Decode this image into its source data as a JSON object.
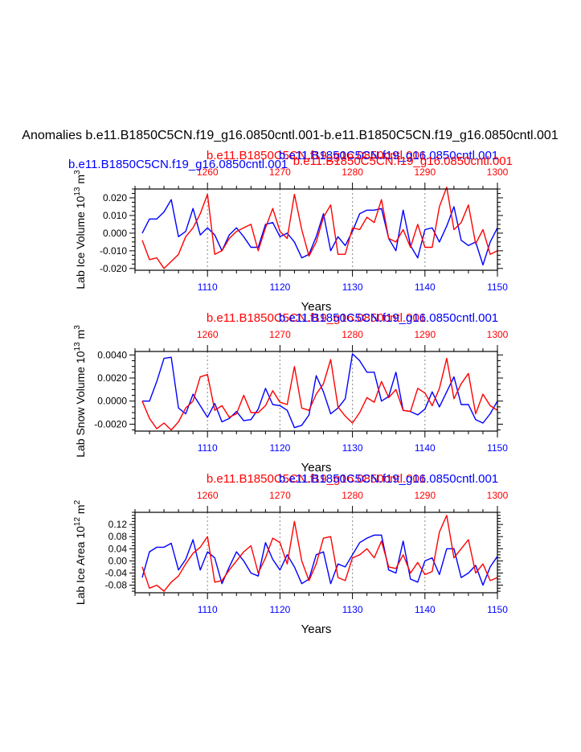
{
  "page_title": "Anomalies b.e11.B1850C5CN.f19_g16.0850cntl.001-b.e11.B1850C5CN.f19_g16.0850cntl.001",
  "colors": {
    "blue": "#0000ff",
    "red": "#ff0000",
    "axis": "#000000",
    "grid": "#999999"
  },
  "chart_data": [
    {
      "type": "line",
      "ylabel": "Lab Ice Volume",
      "yunit_base": "10",
      "yunit_exp": "13",
      "yunit_tail": "m",
      "yunit_tail_exp": "3",
      "xlabel": "Years",
      "red_label": "b.e11.B1850C5CN.f19_g16.0850cntl.001",
      "blue_label": "b.e11.B1850C5CN.f19_g16.0850cntl.001",
      "title_left_blue": "b.e11.B1850C5CN.f19_g16.0850cntl.001",
      "title_right_red": "b.e11.B1850C5CN.f19_g16.0850cntl.001",
      "ylim": [
        -0.021,
        0.025
      ],
      "yticks": [
        -0.02,
        -0.01,
        0.0,
        0.01,
        0.02
      ],
      "ytick_labels": [
        "-0.020",
        "-0.010",
        "0.000",
        "0.010",
        "0.020"
      ],
      "bottom_xlim": [
        1100,
        1150
      ],
      "bottom_xticks": [
        1110,
        1120,
        1130,
        1140,
        1150
      ],
      "top_xlim": [
        1250,
        1300
      ],
      "top_xticks": [
        1260,
        1270,
        1280,
        1290,
        1300
      ],
      "series": [
        {
          "name": "blue",
          "x_start": 1101,
          "values": [
            0.0,
            0.008,
            0.008,
            0.012,
            0.019,
            -0.002,
            0.001,
            0.014,
            -0.001,
            0.003,
            -0.001,
            -0.01,
            -0.001,
            0.003,
            -0.002,
            -0.008,
            -0.008,
            0.005,
            0.006,
            -0.002,
            0.0,
            -0.005,
            -0.014,
            -0.012,
            -0.002,
            0.011,
            -0.01,
            -0.002,
            -0.007,
            0.001,
            0.011,
            0.013,
            0.013,
            0.014,
            -0.003,
            -0.01,
            0.013,
            -0.007,
            -0.014,
            0.002,
            0.003,
            -0.005,
            0.004,
            0.015,
            -0.004,
            -0.007,
            -0.005,
            -0.018,
            -0.005,
            0.003
          ]
        },
        {
          "name": "red",
          "x_start": 1101,
          "values": [
            -0.004,
            -0.015,
            -0.014,
            -0.02,
            -0.016,
            -0.012,
            -0.002,
            0.003,
            0.011,
            0.022,
            -0.012,
            -0.01,
            -0.003,
            0.001,
            0.003,
            0.005,
            -0.01,
            0.003,
            0.014,
            0.001,
            -0.003,
            0.022,
            0.002,
            -0.013,
            -0.005,
            0.009,
            0.016,
            -0.012,
            -0.012,
            0.003,
            0.002,
            0.009,
            0.006,
            0.019,
            -0.003,
            -0.005,
            0.002,
            -0.008,
            0.005,
            -0.008,
            -0.008,
            0.015,
            0.026,
            0.002,
            0.006,
            0.016,
            -0.006,
            0.002,
            -0.012,
            -0.01
          ]
        }
      ]
    },
    {
      "type": "line",
      "ylabel": "Lab Snow Volume",
      "yunit_base": "10",
      "yunit_exp": "13",
      "yunit_tail": "m",
      "yunit_tail_exp": "3",
      "xlabel": "Years",
      "red_label": "b.e11.B1850C5CN.f19_g16.0850cntl.001",
      "blue_label": "b.e11.B1850C5CN.f19_g16.0850cntl.001",
      "ylim": [
        -0.0026,
        0.0043
      ],
      "yticks": [
        -0.002,
        0.0,
        0.002,
        0.004
      ],
      "ytick_labels": [
        "-0.0020",
        "0.0000",
        "0.0020",
        "0.0040"
      ],
      "bottom_xlim": [
        1100,
        1150
      ],
      "bottom_xticks": [
        1110,
        1120,
        1130,
        1140,
        1150
      ],
      "top_xlim": [
        1250,
        1300
      ],
      "top_xticks": [
        1260,
        1270,
        1280,
        1290,
        1300
      ],
      "series": [
        {
          "name": "blue",
          "x_start": 1101,
          "values": [
            0.0,
            0.0,
            0.0017,
            0.0037,
            0.0038,
            -0.0006,
            -0.0011,
            0.0006,
            -0.0004,
            -0.0014,
            -0.0002,
            -0.0018,
            -0.0015,
            -0.0009,
            -0.0017,
            -0.0016,
            -0.0007,
            0.0011,
            -0.0003,
            -0.0004,
            -0.0008,
            -0.0023,
            -0.0021,
            -0.0012,
            0.0022,
            0.0008,
            -0.0011,
            -0.0006,
            0.0002,
            0.0041,
            0.0035,
            0.0025,
            0.0025,
            0.0,
            0.0004,
            0.0025,
            -0.0008,
            -0.0009,
            -0.0012,
            -0.0007,
            0.0008,
            -0.0005,
            0.0008,
            0.0021,
            -0.0003,
            -0.0003,
            -0.0016,
            -0.0019,
            -0.0011,
            0.0
          ]
        },
        {
          "name": "red",
          "x_start": 1101,
          "values": [
            0.0,
            -0.0015,
            -0.0024,
            -0.0019,
            -0.0025,
            -0.0018,
            -0.0006,
            0.0,
            0.0021,
            0.0023,
            -0.0008,
            -0.0004,
            -0.0014,
            -0.0011,
            0.0005,
            -0.001,
            -0.001,
            -0.0004,
            0.0009,
            -0.0001,
            -0.0003,
            0.003,
            -0.0006,
            -0.0008,
            0.0006,
            0.0015,
            0.0036,
            -0.0005,
            -0.0013,
            -0.0019,
            -0.001,
            0.0003,
            -0.0001,
            0.0017,
            0.0003,
            0.001,
            -0.0008,
            -0.0009,
            0.0011,
            0.0007,
            -0.0004,
            0.0011,
            0.0037,
            0.0002,
            0.0015,
            0.0024,
            -0.0011,
            0.0006,
            -0.0004,
            -0.0008
          ]
        }
      ]
    },
    {
      "type": "line",
      "ylabel": "Lab Ice Area",
      "yunit_base": "10",
      "yunit_exp": "12",
      "yunit_tail": "m",
      "yunit_tail_exp": "2",
      "xlabel": "Years",
      "red_label": "b.e11.B1850C5CN.f19_g16.0850cntl.001",
      "blue_label": "b.e11.B1850C5CN.f19_g16.0850cntl.001",
      "ylim": [
        -0.105,
        0.16
      ],
      "yticks": [
        -0.08,
        -0.04,
        0.0,
        0.04,
        0.08,
        0.12
      ],
      "ytick_labels": [
        "-0.08",
        "-0.04",
        "0.00",
        "0.04",
        "0.08",
        "0.12"
      ],
      "bottom_xlim": [
        1100,
        1150
      ],
      "bottom_xticks": [
        1110,
        1120,
        1130,
        1140,
        1150
      ],
      "top_xlim": [
        1250,
        1300
      ],
      "top_xticks": [
        1260,
        1270,
        1280,
        1290,
        1300
      ],
      "series": [
        {
          "name": "blue",
          "x_start": 1101,
          "values": [
            -0.055,
            0.03,
            0.045,
            0.045,
            0.058,
            -0.03,
            0.005,
            0.07,
            -0.03,
            0.03,
            0.01,
            -0.075,
            -0.02,
            0.03,
            0.0,
            -0.04,
            -0.05,
            0.06,
            0.005,
            -0.03,
            0.02,
            -0.02,
            -0.075,
            -0.06,
            0.02,
            0.03,
            -0.075,
            -0.01,
            -0.02,
            0.02,
            0.06,
            0.075,
            0.085,
            0.085,
            -0.03,
            -0.04,
            0.065,
            -0.06,
            -0.07,
            0.0,
            0.01,
            -0.045,
            0.04,
            0.04,
            -0.055,
            -0.04,
            -0.015,
            -0.08,
            -0.02,
            0.015
          ]
        },
        {
          "name": "red",
          "x_start": 1101,
          "values": [
            -0.02,
            -0.09,
            -0.08,
            -0.1,
            -0.07,
            -0.05,
            -0.01,
            0.025,
            0.045,
            0.08,
            -0.07,
            -0.065,
            -0.03,
            0.0,
            0.03,
            0.05,
            -0.04,
            0.01,
            0.075,
            0.06,
            -0.01,
            0.13,
            0.0,
            -0.065,
            -0.01,
            0.075,
            0.08,
            -0.055,
            -0.065,
            0.01,
            0.02,
            0.04,
            0.01,
            0.065,
            -0.02,
            -0.025,
            0.02,
            -0.04,
            -0.005,
            -0.045,
            -0.035,
            0.095,
            0.15,
            0.01,
            0.04,
            0.07,
            -0.04,
            -0.01,
            -0.065,
            -0.055
          ]
        }
      ]
    }
  ]
}
